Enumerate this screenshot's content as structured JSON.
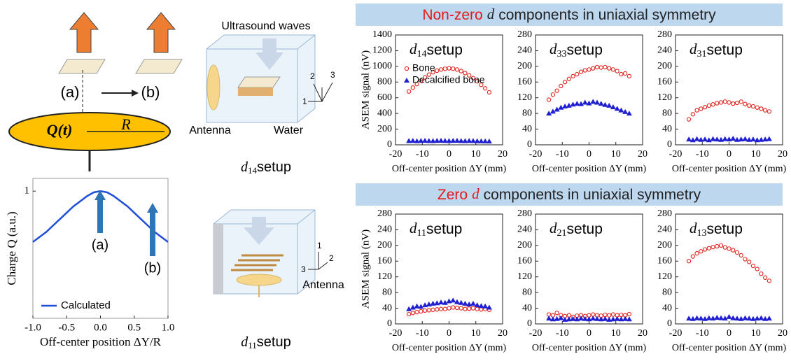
{
  "headers": [
    {
      "lead": "Non-zero",
      "symbol": "d",
      "rest": "components in uniaxial symmetry"
    },
    {
      "lead": "Zero",
      "symbol": "d",
      "rest": "components in uniaxial symmetry"
    }
  ],
  "diagram": {
    "left": {
      "label_a": "(a)",
      "label_b": "(b)",
      "charge": "Q(t)",
      "radius": "R"
    },
    "setup_d14": {
      "waves": "Ultrasound waves",
      "antenna": "Antenna",
      "water": "Water",
      "axis1": "1",
      "axis2": "2",
      "axis3": "3",
      "caption_symbol": "d",
      "caption_subscript": "14",
      "caption_suffix": "setup"
    },
    "setup_d11": {
      "antenna": "Antenna",
      "axis1": "1",
      "axis2": "2",
      "axis3": "3",
      "caption_symbol": "d",
      "caption_subscript": "11",
      "caption_suffix": "setup"
    }
  },
  "chart_data": [
    {
      "type": "line",
      "ylabel": "Charge Q (a.u.)",
      "xlabel": "Off-center position ΔY/R",
      "x": [
        -1,
        -0.9,
        -0.8,
        -0.7,
        -0.6,
        -0.5,
        -0.4,
        -0.3,
        -0.2,
        -0.1,
        0,
        0.1,
        0.2,
        0.3,
        0.4,
        0.5,
        0.6,
        0.7,
        0.8,
        0.9,
        1
      ],
      "series": [
        {
          "name": "Calculated",
          "color": "#1f4fd8",
          "values": [
            0.6,
            0.64,
            0.68,
            0.73,
            0.78,
            0.83,
            0.88,
            0.92,
            0.96,
            0.99,
            1,
            0.99,
            0.96,
            0.92,
            0.88,
            0.83,
            0.78,
            0.73,
            0.68,
            0.64,
            0.6
          ]
        }
      ],
      "xlim": [
        -1,
        1
      ],
      "xticks": [
        {
          "value": -1,
          "label": "-1.0"
        },
        {
          "value": -0.5,
          "label": "-0.5"
        },
        {
          "value": 0,
          "label": "0.0"
        },
        {
          "value": 0.5,
          "label": "0.5"
        },
        {
          "value": 1,
          "label": "1.0"
        }
      ],
      "ylim": [
        0,
        1.1
      ],
      "yticks": [
        1
      ],
      "legend": "lower left",
      "annotations": [
        "(a)",
        "(b)"
      ]
    },
    {
      "type": "scatter",
      "title_symbol": "d",
      "title_subscript": "14",
      "title_suffix": "setup",
      "ylabel": "ASEM signal (nV)",
      "xlabel": "Off-center position ΔY (mm)",
      "legend": "upper left",
      "x": [
        -15,
        -13.5,
        -12,
        -10.5,
        -9,
        -7.5,
        -6,
        -4.5,
        -3,
        -1.5,
        0,
        1.5,
        3,
        4.5,
        6,
        7.5,
        9,
        10.5,
        12,
        13.5,
        15
      ],
      "series": [
        {
          "name": "Bone",
          "color": "#e0201b",
          "marker": "circle",
          "values": [
            680,
            730,
            775,
            820,
            860,
            895,
            925,
            945,
            960,
            970,
            975,
            970,
            960,
            940,
            915,
            885,
            850,
            810,
            765,
            720,
            670
          ]
        },
        {
          "name": "Decalcified bone",
          "color": "#1f1fd0",
          "marker": "triangle",
          "values": [
            50,
            52,
            48,
            51,
            53,
            50,
            49,
            52,
            54,
            51,
            50,
            52,
            53,
            50,
            49,
            51,
            50,
            48,
            47,
            46,
            45
          ]
        }
      ],
      "xlim": [
        -20,
        20
      ],
      "xticks": [
        -20,
        -10,
        0,
        10,
        20
      ],
      "ylim": [
        0,
        1400
      ],
      "yticks": [
        0,
        200,
        400,
        600,
        800,
        1000,
        1200,
        1400
      ]
    },
    {
      "type": "scatter",
      "title_symbol": "d",
      "title_subscript": "33",
      "title_suffix": "setup",
      "xlabel": "Off-center position ΔY (mm)",
      "x": [
        -15,
        -13.5,
        -12,
        -10.5,
        -9,
        -7.5,
        -6,
        -4.5,
        -3,
        -1.5,
        0,
        1.5,
        3,
        4.5,
        6,
        7.5,
        9,
        10.5,
        12,
        13.5,
        15
      ],
      "series": [
        {
          "color": "#e0201b",
          "marker": "circle",
          "values": [
            115,
            128,
            138,
            150,
            160,
            168,
            175,
            180,
            186,
            190,
            192,
            195,
            198,
            197,
            198,
            195,
            192,
            188,
            180,
            182,
            175
          ]
        },
        {
          "color": "#1f1fd0",
          "marker": "triangle",
          "values": [
            80,
            85,
            90,
            95,
            98,
            100,
            103,
            105,
            104,
            108,
            106,
            110,
            108,
            105,
            102,
            100,
            96,
            92,
            88,
            84,
            80
          ]
        }
      ],
      "xlim": [
        -20,
        20
      ],
      "xticks": [
        -20,
        -10,
        0,
        10,
        20
      ],
      "ylim": [
        0,
        280
      ],
      "yticks": [
        0,
        40,
        80,
        120,
        160,
        200,
        240,
        280
      ]
    },
    {
      "type": "scatter",
      "title_symbol": "d",
      "title_subscript": "31",
      "title_suffix": "setup",
      "xlabel": "Off-center position ΔY (mm)",
      "x": [
        -15,
        -13.5,
        -12,
        -10.5,
        -9,
        -7.5,
        -6,
        -4.5,
        -3,
        -1.5,
        0,
        1.5,
        3,
        4.5,
        6,
        7.5,
        9,
        10.5,
        12,
        13.5,
        15
      ],
      "series": [
        {
          "color": "#e0201b",
          "marker": "circle",
          "values": [
            65,
            78,
            88,
            92,
            96,
            100,
            103,
            106,
            108,
            110,
            108,
            105,
            107,
            110,
            104,
            100,
            98,
            95,
            92,
            88,
            85
          ]
        },
        {
          "color": "#1f1fd0",
          "marker": "triangle",
          "values": [
            14,
            12,
            15,
            13,
            14,
            12,
            15,
            14,
            13,
            15,
            14,
            16,
            13,
            14,
            15,
            13,
            14,
            12,
            13,
            14,
            15
          ]
        }
      ],
      "xlim": [
        -20,
        20
      ],
      "xticks": [
        -20,
        -10,
        0,
        10,
        20
      ],
      "ylim": [
        0,
        280
      ],
      "yticks": [
        0,
        40,
        80,
        120,
        160,
        200,
        240,
        280
      ]
    },
    {
      "type": "scatter",
      "title_symbol": "d",
      "title_subscript": "11",
      "title_suffix": "setup",
      "ylabel": "ASEM signal (nV)",
      "xlabel": "Off-center position ΔY (mm)",
      "x": [
        -15,
        -13.5,
        -12,
        -10.5,
        -9,
        -7.5,
        -6,
        -4.5,
        -3,
        -1.5,
        0,
        1.5,
        3,
        4.5,
        6,
        7.5,
        9,
        10.5,
        12,
        13.5,
        15
      ],
      "series": [
        {
          "color": "#e0201b",
          "marker": "circle",
          "values": [
            25,
            28,
            30,
            32,
            34,
            35,
            36,
            37,
            38,
            38,
            40,
            42,
            41,
            40,
            38,
            39,
            40,
            38,
            37,
            38,
            36
          ]
        },
        {
          "color": "#1f1fd0",
          "marker": "triangle",
          "values": [
            38,
            42,
            45,
            44,
            48,
            50,
            52,
            53,
            55,
            54,
            58,
            60,
            56,
            54,
            52,
            50,
            52,
            48,
            46,
            45,
            42
          ]
        }
      ],
      "xlim": [
        -20,
        20
      ],
      "xticks": [
        -20,
        -10,
        0,
        10,
        20
      ],
      "ylim": [
        0,
        280
      ],
      "yticks": [
        0,
        40,
        80,
        120,
        160,
        200,
        240,
        280
      ]
    },
    {
      "type": "scatter",
      "title_symbol": "d",
      "title_subscript": "21",
      "title_suffix": "setup",
      "xlabel": "Off-center position ΔY (mm)",
      "x": [
        -15,
        -13.5,
        -12,
        -10.5,
        -9,
        -7.5,
        -6,
        -4.5,
        -3,
        -1.5,
        0,
        1.5,
        3,
        4.5,
        6,
        7.5,
        9,
        10.5,
        12,
        13.5,
        15
      ],
      "series": [
        {
          "color": "#e0201b",
          "marker": "circle",
          "values": [
            24,
            22,
            28,
            22,
            20,
            22,
            18,
            21,
            22,
            20,
            22,
            24,
            22,
            21,
            23,
            22,
            24,
            22,
            23,
            22,
            25
          ]
        },
        {
          "color": "#1f1fd0",
          "marker": "triangle",
          "values": [
            14,
            12,
            13,
            15,
            11,
            12,
            13,
            12,
            14,
            13,
            12,
            14,
            13,
            12,
            13,
            11,
            12,
            13,
            12,
            13,
            12
          ]
        }
      ],
      "xlim": [
        -20,
        20
      ],
      "xticks": [
        -20,
        -10,
        0,
        10,
        20
      ],
      "ylim": [
        0,
        280
      ],
      "yticks": [
        0,
        40,
        80,
        120,
        160,
        200,
        240,
        280
      ]
    },
    {
      "type": "scatter",
      "title_symbol": "d",
      "title_subscript": "13",
      "title_suffix": "setup",
      "xlabel": "Off-center position ΔY (mm)",
      "x": [
        -15,
        -13.5,
        -12,
        -10.5,
        -9,
        -7.5,
        -6,
        -4.5,
        -3,
        -1.5,
        0,
        1.5,
        3,
        4.5,
        6,
        7.5,
        9,
        10.5,
        12,
        13.5,
        15
      ],
      "series": [
        {
          "color": "#e0201b",
          "marker": "circle",
          "values": [
            160,
            172,
            180,
            185,
            190,
            193,
            196,
            198,
            200,
            195,
            192,
            188,
            182,
            175,
            165,
            158,
            148,
            140,
            128,
            118,
            110
          ]
        },
        {
          "color": "#1f1fd0",
          "marker": "triangle",
          "values": [
            14,
            13,
            15,
            14,
            13,
            15,
            14,
            16,
            15,
            14,
            18,
            15,
            14,
            13,
            15,
            14,
            13,
            14,
            15,
            13,
            14
          ]
        }
      ],
      "xlim": [
        -20,
        20
      ],
      "xticks": [
        -20,
        -10,
        0,
        10,
        20
      ],
      "ylim": [
        0,
        280
      ],
      "yticks": [
        0,
        40,
        80,
        120,
        160,
        200,
        240,
        280
      ]
    }
  ]
}
